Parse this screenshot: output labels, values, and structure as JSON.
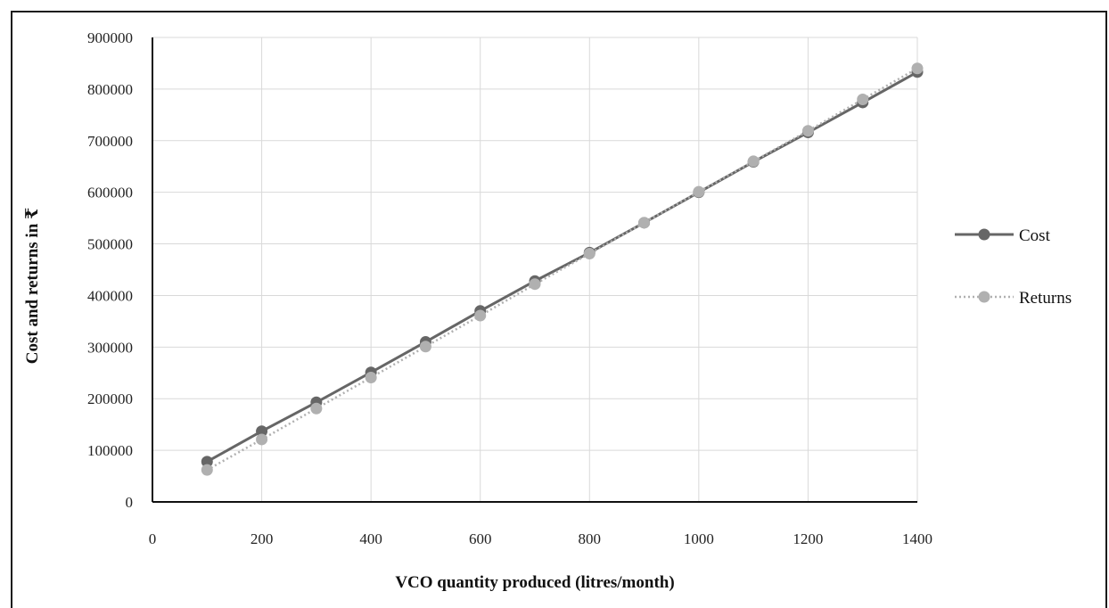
{
  "chart_data": {
    "type": "line",
    "title": "",
    "xlabel": "VCO quantity produced (litres/month)",
    "ylabel": "Cost and returns in ₹",
    "xlim": [
      0,
      1400
    ],
    "ylim": [
      0,
      900000
    ],
    "x_ticks": [
      0,
      200,
      400,
      600,
      800,
      1000,
      1200,
      1400
    ],
    "y_ticks": [
      0,
      100000,
      200000,
      300000,
      400000,
      500000,
      600000,
      700000,
      800000,
      900000
    ],
    "x_tick_labels": [
      "0",
      "200",
      "400",
      "600",
      "800",
      "1000",
      "1200",
      "1400"
    ],
    "y_tick_labels": [
      "0",
      "100000",
      "200000",
      "300000",
      "400000",
      "500000",
      "600000",
      "700000",
      "800000",
      "900000"
    ],
    "grid": true,
    "legend_position": "right",
    "x": [
      100,
      200,
      300,
      400,
      500,
      600,
      700,
      800,
      900,
      1000,
      1100,
      1200,
      1300,
      1400
    ],
    "series": [
      {
        "name": "Cost",
        "color": "#666666",
        "style": "solid",
        "values": [
          78000,
          137000,
          193000,
          251000,
          310000,
          370000,
          428000,
          483000,
          541000,
          600000,
          659000,
          716000,
          774000,
          833000
        ]
      },
      {
        "name": "Returns",
        "color": "#b0b0b0",
        "style": "dotted",
        "values": [
          62000,
          121000,
          181000,
          241000,
          301000,
          361000,
          422000,
          481000,
          541000,
          601000,
          660000,
          719000,
          780000,
          840000
        ]
      }
    ]
  }
}
